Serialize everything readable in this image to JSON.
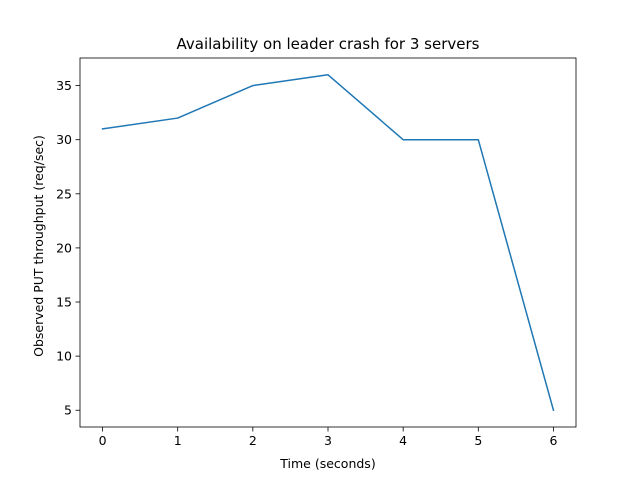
{
  "chart_data": {
    "type": "line",
    "title": "Availability on leader crash for 3 servers",
    "xlabel": "Time (seconds)",
    "ylabel": "Observed PUT throughput (req/sec)",
    "x": [
      0,
      1,
      2,
      3,
      4,
      5,
      6
    ],
    "series": [
      {
        "values": [
          31,
          32,
          35,
          36,
          30,
          30,
          5
        ]
      }
    ],
    "xlim": [
      -0.3,
      6.3
    ],
    "ylim": [
      3.45,
      37.55
    ],
    "xticks": [
      0,
      1,
      2,
      3,
      4,
      5,
      6
    ],
    "yticks": [
      5,
      10,
      15,
      20,
      25,
      30,
      35
    ],
    "grid": false,
    "legend": "none",
    "colors": {
      "line": "#1f77b4",
      "axes": "#000000",
      "background": "#ffffff"
    }
  }
}
